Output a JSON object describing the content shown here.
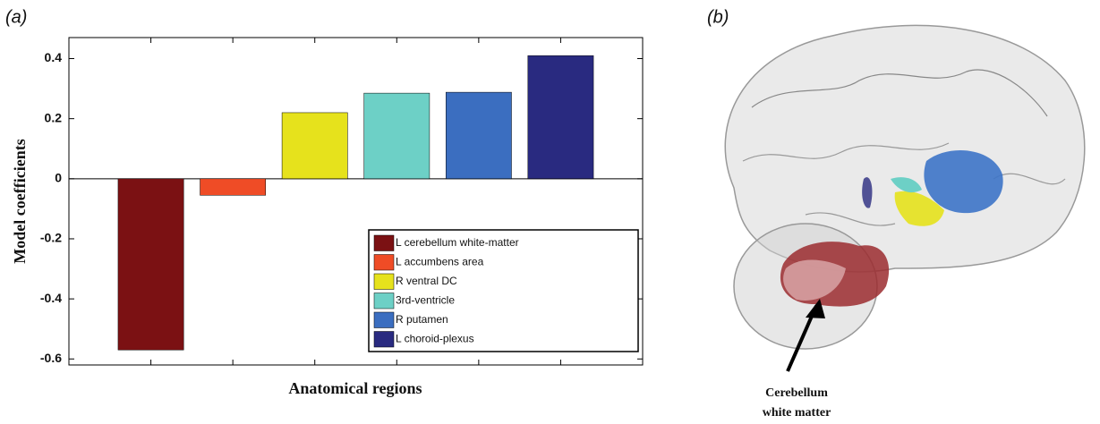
{
  "panels": [
    "(a)",
    "(b)"
  ],
  "chart_data": {
    "type": "bar",
    "ylabel": "Model coefficients",
    "xlabel": "Anatomical regions",
    "categories": [
      null,
      null,
      null,
      null,
      null,
      null
    ],
    "values": [
      -0.57,
      -0.055,
      0.22,
      0.285,
      0.288,
      0.41
    ],
    "colors": [
      "#7b1113",
      "#ef4c26",
      "#e6e21c",
      "#6dd0c6",
      "#3b6ec0",
      "#292a80"
    ],
    "legend": [
      "L cerebellum white-matter",
      "L accumbens area",
      "R ventral DC",
      "3rd-ventricle",
      "R putamen",
      "L choroid-plexus"
    ],
    "ylim": [
      -0.62,
      0.47
    ],
    "yticks": [
      -0.6,
      -0.4,
      -0.2,
      0,
      0.2,
      0.4
    ],
    "legend_position": "lower right"
  },
  "annotation": [
    "Cerebellum",
    "white matter"
  ]
}
